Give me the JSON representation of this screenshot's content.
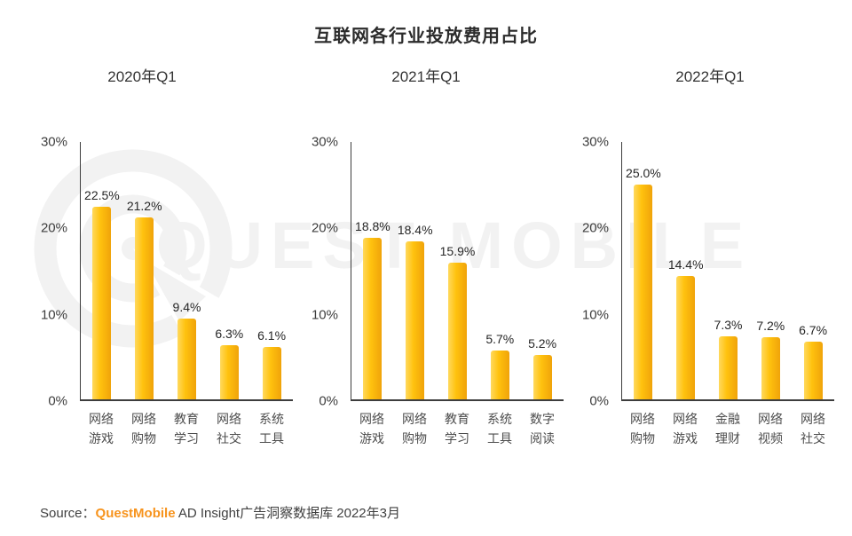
{
  "title": "互联网各行业投放费用占比",
  "watermark": {
    "text": "QUEST MOBILE",
    "color": "#f2f2f2"
  },
  "source": {
    "label": "Source：",
    "brand": "QuestMobile",
    "rest": " AD Insight广告洞察数据库 2022年3月"
  },
  "colors": {
    "bar_light": "#ffd95e",
    "bar_main": "#ffc20e",
    "bar_dark": "#f0a30a",
    "axis": "#3d3d3d",
    "brand_orange": "#f7941e",
    "watermark_gray": "#f2f2f2"
  },
  "chart_data": [
    {
      "type": "bar",
      "title": "2020年Q1",
      "categories": [
        "网络游戏",
        "网络购物",
        "教育学习",
        "网络社交",
        "系统工具"
      ],
      "values": [
        22.5,
        21.2,
        9.4,
        6.3,
        6.1
      ],
      "labels": [
        "22.5%",
        "21.2%",
        "9.4%",
        "6.3%",
        "6.1%"
      ],
      "ylabel": "",
      "xlabel": "",
      "ylim": [
        0,
        30
      ],
      "yticks": [
        "30%",
        "20%",
        "10%",
        "0%"
      ],
      "grid": false,
      "legend": "none"
    },
    {
      "type": "bar",
      "title": "2021年Q1",
      "categories": [
        "网络游戏",
        "网络购物",
        "教育学习",
        "系统工具",
        "数字阅读"
      ],
      "values": [
        18.8,
        18.4,
        15.9,
        5.7,
        5.2
      ],
      "labels": [
        "18.8%",
        "18.4%",
        "15.9%",
        "5.7%",
        "5.2%"
      ],
      "ylabel": "",
      "xlabel": "",
      "ylim": [
        0,
        30
      ],
      "yticks": [
        "30%",
        "20%",
        "10%",
        "0%"
      ],
      "grid": false,
      "legend": "none"
    },
    {
      "type": "bar",
      "title": "2022年Q1",
      "categories": [
        "网络购物",
        "网络游戏",
        "金融理财",
        "网络视频",
        "网络社交"
      ],
      "values": [
        25.0,
        14.4,
        7.3,
        7.2,
        6.7
      ],
      "labels": [
        "25.0%",
        "14.4%",
        "7.3%",
        "7.2%",
        "6.7%"
      ],
      "ylabel": "",
      "xlabel": "",
      "ylim": [
        0,
        30
      ],
      "yticks": [
        "30%",
        "20%",
        "10%",
        "0%"
      ],
      "grid": false,
      "legend": "none"
    }
  ]
}
